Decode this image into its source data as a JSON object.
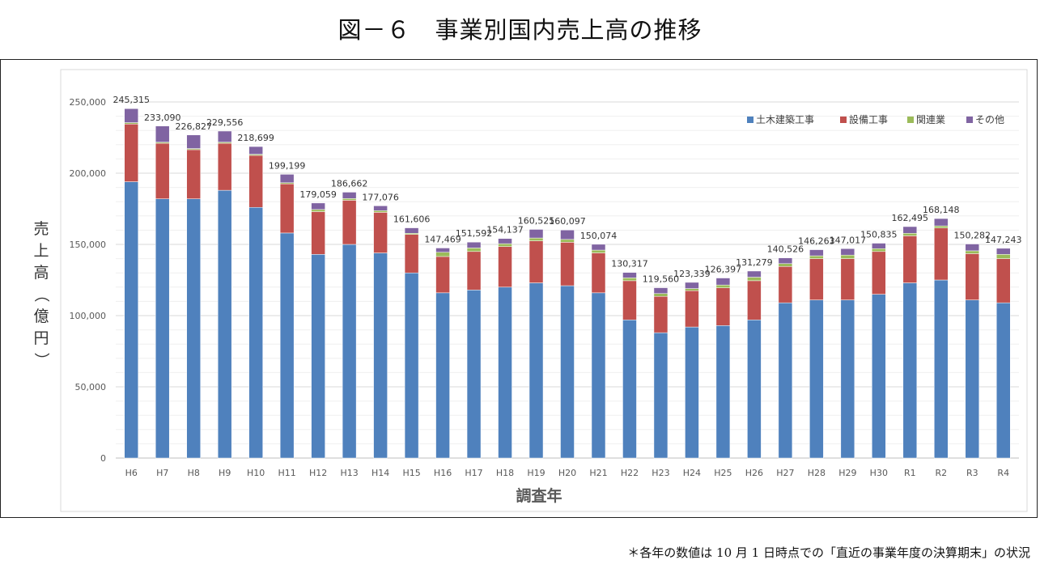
{
  "page_title": "図－６　事業別国内売上高の推移",
  "footnote": "＊各年の数値は 10 月 1 日時点での「直近の事業年度の決算期末」の状況",
  "chart_data": {
    "type": "bar",
    "stacked": true,
    "title": "",
    "xlabel": "調査年",
    "ylabel": "売上高（億円）",
    "ylim": [
      0,
      250000
    ],
    "yticks": [
      0,
      50000,
      100000,
      150000,
      200000,
      250000
    ],
    "ytick_labels": [
      "0",
      "50,000",
      "100,000",
      "150,000",
      "200,000",
      "250,000"
    ],
    "grid": true,
    "legend_position": "top-right",
    "categories": [
      "H6",
      "H7",
      "H8",
      "H9",
      "H10",
      "H11",
      "H12",
      "H13",
      "H14",
      "H15",
      "H16",
      "H17",
      "H18",
      "H19",
      "H20",
      "H21",
      "H22",
      "H23",
      "H24",
      "H25",
      "H26",
      "H27",
      "H28",
      "H29",
      "H30",
      "R1",
      "R2",
      "R3",
      "R4"
    ],
    "totals": [
      245315,
      233090,
      226827,
      229556,
      218699,
      199199,
      179059,
      186662,
      177076,
      161606,
      147469,
      151592,
      154137,
      160525,
      160097,
      150074,
      130317,
      119560,
      123339,
      126397,
      131279,
      140526,
      146263,
      147017,
      150835,
      162495,
      168148,
      150282,
      147243
    ],
    "total_labels": [
      "245,315",
      "233,090",
      "226,827",
      "229,556",
      "218,699",
      "199,199",
      "179,059",
      "186,662",
      "177,076",
      "161,606",
      "147,469",
      "151,592",
      "154,137",
      "160,525",
      "160,097",
      "150,074",
      "130,317",
      "119,560",
      "123,339",
      "126,397",
      "131,279",
      "140,526",
      "146,263",
      "147,017",
      "150,835",
      "162,495",
      "168,148",
      "150,282",
      "147,243"
    ],
    "series": [
      {
        "name": "土木建築工事",
        "color": "#4f81bd",
        "values": [
          194000,
          182000,
          182000,
          188000,
          176000,
          158000,
          143000,
          150000,
          144000,
          130000,
          116000,
          118000,
          120000,
          123000,
          121000,
          116000,
          97000,
          88000,
          92000,
          93000,
          97000,
          109000,
          111000,
          111000,
          115000,
          123000,
          125000,
          111000,
          109000
        ]
      },
      {
        "name": "設備工事",
        "color": "#c0504d",
        "values": [
          40500,
          39000,
          34500,
          33000,
          36500,
          34500,
          30000,
          31000,
          28500,
          27000,
          25500,
          27000,
          28500,
          29500,
          30500,
          28000,
          27500,
          25500,
          25500,
          26500,
          27500,
          25500,
          29000,
          29000,
          30000,
          33000,
          36500,
          32500,
          31000
        ]
      },
      {
        "name": "関連業",
        "color": "#9bbb59",
        "values": [
          1000,
          800,
          800,
          800,
          800,
          800,
          1500,
          1200,
          1200,
          800,
          3000,
          2500,
          2000,
          2000,
          2000,
          2000,
          2000,
          2000,
          1500,
          2000,
          2500,
          2000,
          2000,
          2500,
          2000,
          1800,
          1500,
          2000,
          3000
        ]
      },
      {
        "name": "その他",
        "color": "#8064a2",
        "values": [
          9815,
          11290,
          9527,
          7756,
          5399,
          5899,
          4559,
          4462,
          3376,
          3806,
          2969,
          4092,
          3637,
          6025,
          6597,
          4074,
          3817,
          4060,
          4339,
          4897,
          4279,
          4026,
          4263,
          4517,
          3835,
          4695,
          5148,
          4782,
          4243
        ]
      }
    ]
  }
}
